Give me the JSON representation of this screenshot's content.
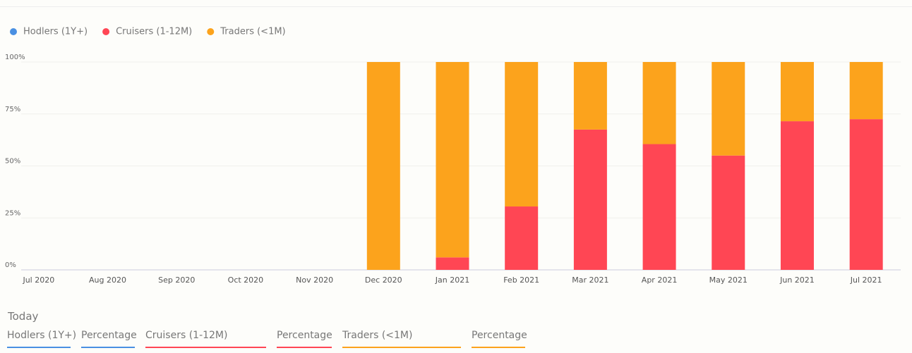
{
  "chart_data": {
    "type": "stacked_bar",
    "categories": [
      "Jul 2020",
      "Aug 2020",
      "Sep 2020",
      "Oct 2020",
      "Nov 2020",
      "Dec 2020",
      "Jan 2021",
      "Feb 2021",
      "Mar 2021",
      "Apr 2021",
      "May 2021",
      "Jun 2021",
      "Jul 2021"
    ],
    "series": [
      {
        "name": "Hodlers (1Y+)",
        "color": "#4a90e2",
        "values": [
          null,
          null,
          null,
          null,
          null,
          0,
          0,
          0,
          0,
          0,
          0,
          0,
          0
        ]
      },
      {
        "name": "Cruisers (1-12M)",
        "color": "#ff4654",
        "values": [
          null,
          null,
          null,
          null,
          null,
          0,
          6,
          30.5,
          67.5,
          60.5,
          55,
          71.5,
          72.5
        ]
      },
      {
        "name": "Traders (<1M)",
        "color": "#fca31c",
        "values": [
          null,
          null,
          null,
          null,
          null,
          100,
          94,
          69.5,
          32.5,
          39.5,
          45,
          28.5,
          27.5
        ]
      }
    ],
    "ylim": [
      0,
      100
    ],
    "yticks": [
      {
        "value": 0,
        "label": "0%"
      },
      {
        "value": 25,
        "label": "25%"
      },
      {
        "value": 50,
        "label": "50%"
      },
      {
        "value": 75,
        "label": "75%"
      },
      {
        "value": 100,
        "label": "100%"
      }
    ],
    "grid": true,
    "legend": "top-left"
  },
  "today_table": {
    "title": "Today",
    "columns": [
      {
        "label": "Hodlers (1Y+)",
        "color": "#4a90e2"
      },
      {
        "label": "Percentage",
        "color": "#4a90e2"
      },
      {
        "label": "Cruisers (1-12M)",
        "color": "#ff4654"
      },
      {
        "label": "Percentage",
        "color": "#ff4654"
      },
      {
        "label": "Traders (<1M)",
        "color": "#fca31c"
      },
      {
        "label": "Percentage",
        "color": "#fca31c"
      }
    ]
  }
}
